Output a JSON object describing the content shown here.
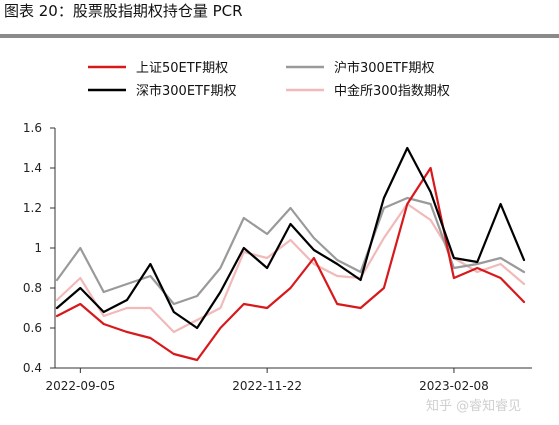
{
  "figure": {
    "title": "图表 20：股票股指期权持仓量 PCR",
    "watermark": "知乎 @睿知睿见"
  },
  "chart_data": {
    "type": "line",
    "x": [
      "2022-08-26",
      "2022-09-05",
      "2022-09-15",
      "2022-09-25",
      "2022-10-05",
      "2022-10-15",
      "2022-10-25",
      "2022-11-04",
      "2022-11-14",
      "2022-11-22",
      "2022-12-02",
      "2022-12-12",
      "2022-12-22",
      "2023-01-01",
      "2023-01-11",
      "2023-01-21",
      "2023-01-31",
      "2023-02-08",
      "2023-02-18",
      "2023-02-28",
      "2023-03-06"
    ],
    "x_ticks": [
      "2022-09-05",
      "2022-11-22",
      "2023-02-08"
    ],
    "ylim": [
      0.4,
      1.6
    ],
    "yticks": [
      "0.4",
      "0.6",
      "0.8",
      "1",
      "1.2",
      "1.4",
      "1.6"
    ],
    "grid": false,
    "legend_position": "top",
    "series": [
      {
        "name": "上证50ETF期权",
        "color": "#d7191c",
        "width": 2.2,
        "values": [
          0.66,
          0.72,
          0.62,
          0.58,
          0.55,
          0.47,
          0.44,
          0.6,
          0.72,
          0.7,
          0.8,
          0.95,
          0.72,
          0.7,
          0.8,
          1.22,
          1.4,
          0.85,
          0.9,
          0.85,
          0.73
        ]
      },
      {
        "name": "沪市300ETF期权",
        "color": "#9a9a9a",
        "width": 2.2,
        "values": [
          0.84,
          1.0,
          0.78,
          0.82,
          0.86,
          0.72,
          0.76,
          0.9,
          1.15,
          1.07,
          1.2,
          1.05,
          0.94,
          0.88,
          1.2,
          1.25,
          1.22,
          0.9,
          0.92,
          0.95,
          0.88
        ]
      },
      {
        "name": "深市300ETF期权",
        "color": "#000000",
        "width": 2.2,
        "values": [
          0.7,
          0.8,
          0.68,
          0.74,
          0.92,
          0.68,
          0.6,
          0.78,
          1.0,
          0.9,
          1.12,
          0.99,
          0.92,
          0.84,
          1.25,
          1.5,
          1.28,
          0.95,
          0.93,
          1.22,
          0.94
        ]
      },
      {
        "name": "中金所300指数期权",
        "color": "#f2b9b9",
        "width": 2.2,
        "values": [
          0.74,
          0.85,
          0.66,
          0.7,
          0.7,
          0.58,
          0.64,
          0.7,
          0.98,
          0.95,
          1.04,
          0.92,
          0.86,
          0.85,
          1.05,
          1.22,
          1.14,
          0.95,
          0.88,
          0.92,
          0.82
        ]
      }
    ]
  }
}
